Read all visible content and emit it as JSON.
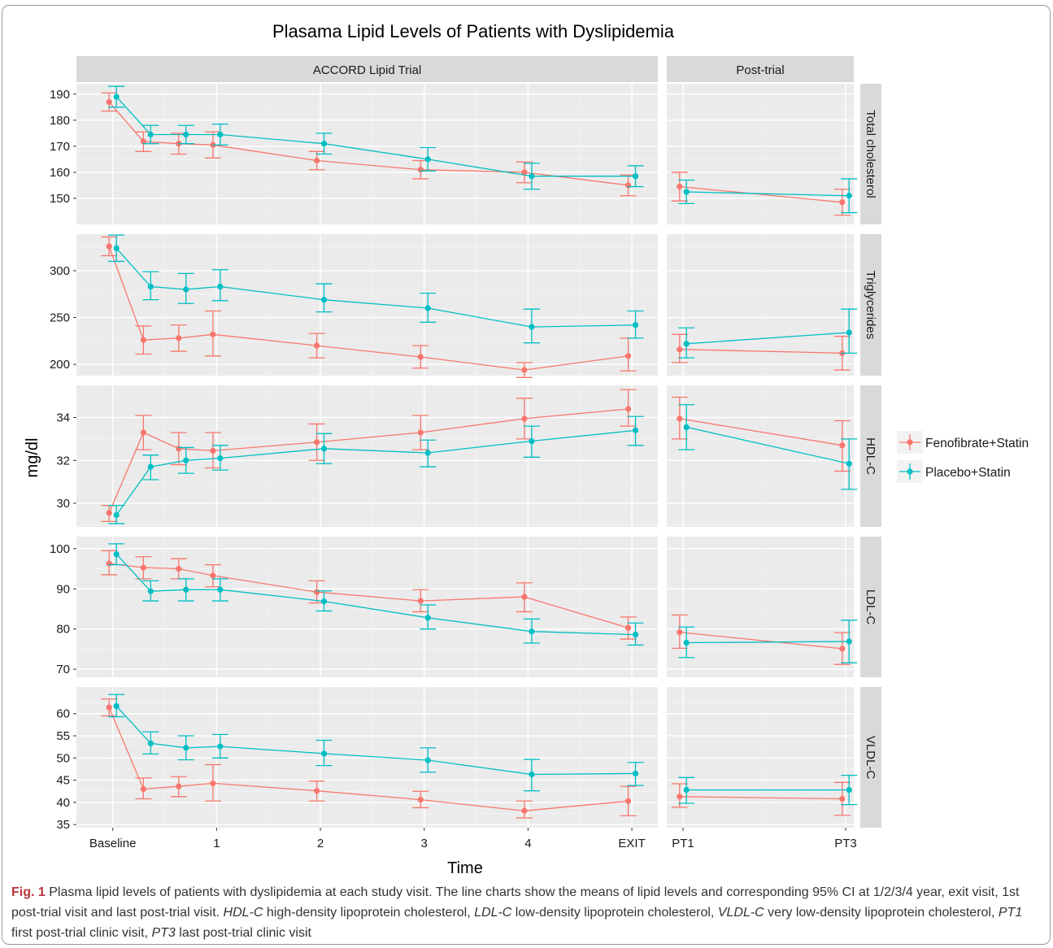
{
  "chart_data": {
    "type": "line",
    "title": "Plasama Lipid Levels of Patients with Dyslipidemia",
    "xlabel": "Time",
    "ylabel": "mg/dl",
    "facet_columns": [
      "ACCORD Lipid Trial",
      "Post-trial"
    ],
    "x_ticks": {
      "trial": [
        {
          "label": "Baseline",
          "x": 0
        },
        {
          "label": "1",
          "x": 1
        },
        {
          "label": "2",
          "x": 2
        },
        {
          "label": "3",
          "x": 3
        },
        {
          "label": "4",
          "x": 4
        },
        {
          "label": "EXIT",
          "x": 5
        }
      ],
      "post": [
        {
          "label": "PT1",
          "x": 0
        },
        {
          "label": "PT3",
          "x": 1
        }
      ]
    },
    "trial_x": [
      0,
      0.33,
      0.67,
      1,
      2,
      3,
      4,
      5
    ],
    "post_x": [
      0,
      1
    ],
    "legend": {
      "position": "right",
      "entries": [
        {
          "name": "Fenofibrate+Statin",
          "color": "#F8766D"
        },
        {
          "name": "Placebo+Statin",
          "color": "#00BFC4"
        }
      ]
    },
    "panels": [
      {
        "label": "Total cholesterol",
        "ylim": [
          140,
          194
        ],
        "yticks": [
          150,
          160,
          170,
          180,
          190
        ],
        "series": [
          {
            "name": "Fenofibrate+Statin",
            "trial": [
              187,
              171.8,
              171,
              170.5,
              164.5,
              161,
              160,
              155
            ],
            "trial_ci": [
              [
                183.5,
                190.5
              ],
              [
                168,
                175.5
              ],
              [
                167,
                175
              ],
              [
                165.5,
                175.5
              ],
              [
                161,
                168
              ],
              [
                157.5,
                164.5
              ],
              [
                156,
                164
              ],
              [
                151,
                159
              ]
            ],
            "post": [
              154.5,
              148.5
            ],
            "post_ci": [
              [
                149,
                160
              ],
              [
                143.5,
                153.5
              ]
            ]
          },
          {
            "name": "Placebo+Statin",
            "trial": [
              189,
              174.5,
              174.5,
              174.5,
              171,
              165,
              158.5,
              158.5
            ],
            "trial_ci": [
              [
                185,
                193
              ],
              [
                171,
                178
              ],
              [
                171,
                178
              ],
              [
                170.5,
                178.5
              ],
              [
                167,
                175
              ],
              [
                160.5,
                169.5
              ],
              [
                153.5,
                163.5
              ],
              [
                154.5,
                162.5
              ]
            ],
            "post": [
              152.5,
              151
            ],
            "post_ci": [
              [
                148,
                157
              ],
              [
                144.5,
                157.5
              ]
            ]
          }
        ]
      },
      {
        "label": "Triglycerides",
        "ylim": [
          188,
          339
        ],
        "yticks": [
          200,
          250,
          300
        ],
        "series": [
          {
            "name": "Fenofibrate+Statin",
            "trial": [
              326,
              226,
              228,
              232,
              220,
              208,
              194,
              209
            ],
            "trial_ci": [
              [
                316,
                336
              ],
              [
                211,
                241
              ],
              [
                214,
                242
              ],
              [
                209,
                257
              ],
              [
                207,
                233
              ],
              [
                196,
                220
              ],
              [
                186,
                202
              ],
              [
                193,
                228
              ]
            ],
            "post": [
              216,
              212
            ],
            "post_ci": [
              [
                202,
                232
              ],
              [
                194,
                230
              ]
            ]
          },
          {
            "name": "Placebo+Statin",
            "trial": [
              324,
              283,
              280,
              283,
              269,
              260,
              240,
              242
            ],
            "trial_ci": [
              [
                310,
                338
              ],
              [
                269,
                299
              ],
              [
                265,
                297
              ],
              [
                268,
                301
              ],
              [
                256,
                286
              ],
              [
                245,
                276
              ],
              [
                223,
                259
              ],
              [
                228,
                257
              ]
            ],
            "post": [
              222,
              234
            ],
            "post_ci": [
              [
                207,
                239
              ],
              [
                212,
                259
              ]
            ]
          }
        ]
      },
      {
        "label": "HDL-C",
        "ylim": [
          28.9,
          35.5
        ],
        "yticks": [
          30,
          32,
          34
        ],
        "series": [
          {
            "name": "Fenofibrate+Statin",
            "trial": [
              29.55,
              33.3,
              32.55,
              32.45,
              32.85,
              33.3,
              33.95,
              34.4
            ],
            "trial_ci": [
              [
                29.15,
                29.9
              ],
              [
                32.5,
                34.1
              ],
              [
                31.8,
                33.3
              ],
              [
                31.65,
                33.3
              ],
              [
                32,
                33.7
              ],
              [
                32.5,
                34.1
              ],
              [
                33,
                34.9
              ],
              [
                33.6,
                35.3
              ]
            ],
            "post": [
              33.95,
              32.7
            ],
            "post_ci": [
              [
                33.0,
                34.95
              ],
              [
                31.5,
                33.85
              ]
            ]
          },
          {
            "name": "Placebo+Statin",
            "trial": [
              29.45,
              31.7,
              32.0,
              32.1,
              32.55,
              32.35,
              32.9,
              33.4
            ],
            "trial_ci": [
              [
                29.05,
                29.9
              ],
              [
                31.1,
                32.25
              ],
              [
                31.4,
                32.6
              ],
              [
                31.55,
                32.7
              ],
              [
                31.85,
                33.25
              ],
              [
                31.7,
                32.95
              ],
              [
                32.15,
                33.6
              ],
              [
                32.7,
                34.05
              ]
            ],
            "post": [
              33.55,
              31.85
            ],
            "post_ci": [
              [
                32.5,
                34.6
              ],
              [
                30.65,
                33.0
              ]
            ]
          }
        ]
      },
      {
        "label": "LDL-C",
        "ylim": [
          68,
          103
        ],
        "yticks": [
          70,
          80,
          90,
          100
        ],
        "series": [
          {
            "name": "Fenofibrate+Statin",
            "trial": [
              96.3,
              95.3,
              95.0,
              93.3,
              89.2,
              87.0,
              88.0,
              80.3
            ],
            "trial_ci": [
              [
                93.5,
                99.5
              ],
              [
                92.5,
                98
              ],
              [
                92.5,
                97.5
              ],
              [
                90.5,
                96
              ],
              [
                86.5,
                92
              ],
              [
                84.3,
                89.8
              ],
              [
                84.3,
                91.5
              ],
              [
                77.5,
                83
              ]
            ],
            "post": [
              79.2,
              75.1
            ],
            "post_ci": [
              [
                75.2,
                83.5
              ],
              [
                71.2,
                79.1
              ]
            ]
          },
          {
            "name": "Placebo+Statin",
            "trial": [
              98.6,
              89.4,
              89.8,
              89.8,
              86.9,
              82.8,
              79.4,
              78.6
            ],
            "trial_ci": [
              [
                96,
                101.2
              ],
              [
                87,
                92
              ],
              [
                87,
                92.5
              ],
              [
                87,
                92.5
              ],
              [
                84.5,
                89.5
              ],
              [
                80,
                86
              ],
              [
                76.5,
                82.5
              ],
              [
                76,
                81.5
              ]
            ],
            "post": [
              76.6,
              76.9
            ],
            "post_ci": [
              [
                72.9,
                80.5
              ],
              [
                71.6,
                82.2
              ]
            ]
          }
        ]
      },
      {
        "label": "VLDL-C",
        "ylim": [
          34.3,
          66
        ],
        "yticks": [
          35,
          40,
          45,
          50,
          55,
          60
        ],
        "series": [
          {
            "name": "Fenofibrate+Statin",
            "trial": [
              61.4,
              43.0,
              43.6,
              44.3,
              42.6,
              40.6,
              38.1,
              40.3
            ],
            "trial_ci": [
              [
                59.5,
                63.3
              ],
              [
                40.8,
                45.5
              ],
              [
                41.3,
                45.8
              ],
              [
                40.3,
                48.5
              ],
              [
                40.3,
                44.8
              ],
              [
                38.8,
                42.5
              ],
              [
                36.5,
                40.3
              ],
              [
                37.0,
                43.6
              ]
            ],
            "post": [
              41.3,
              40.8
            ],
            "post_ci": [
              [
                38.9,
                44.2
              ],
              [
                37.1,
                44.5
              ]
            ]
          },
          {
            "name": "Placebo+Statin",
            "trial": [
              61.7,
              53.3,
              52.3,
              52.6,
              51.0,
              49.5,
              46.3,
              46.5
            ],
            "trial_ci": [
              [
                59.3,
                64.3
              ],
              [
                50.9,
                55.9
              ],
              [
                49.6,
                55.0
              ],
              [
                50.0,
                55.3
              ],
              [
                48.3,
                54.0
              ],
              [
                46.8,
                52.3
              ],
              [
                42.6,
                49.7
              ],
              [
                43.8,
                49.0
              ]
            ],
            "post": [
              42.8,
              42.8
            ],
            "post_ci": [
              [
                39.8,
                45.6
              ],
              [
                39.5,
                46.1
              ]
            ]
          }
        ]
      }
    ]
  },
  "caption": {
    "label": "Fig. 1",
    "segments": [
      {
        "text": "  Plasma lipid levels of patients with dyslipidemia at each study visit. The line charts show the means of lipid levels and corresponding 95% CI at 1/2/3/4 year, exit visit, 1st post-trial visit and last post-trial visit. ",
        "italic": false
      },
      {
        "text": "HDL-C",
        "italic": true
      },
      {
        "text": " high-density lipoprotein cholesterol, ",
        "italic": false
      },
      {
        "text": "LDL-C",
        "italic": true
      },
      {
        "text": " low-density lipoprotein cholesterol, ",
        "italic": false
      },
      {
        "text": "VLDL-C",
        "italic": true
      },
      {
        "text": " very low-density lipoprotein cholesterol, ",
        "italic": false
      },
      {
        "text": "PT1",
        "italic": true
      },
      {
        "text": " first post-trial clinic visit, ",
        "italic": false
      },
      {
        "text": "PT3",
        "italic": true
      },
      {
        "text": " last post-trial clinic visit",
        "italic": false
      }
    ]
  }
}
